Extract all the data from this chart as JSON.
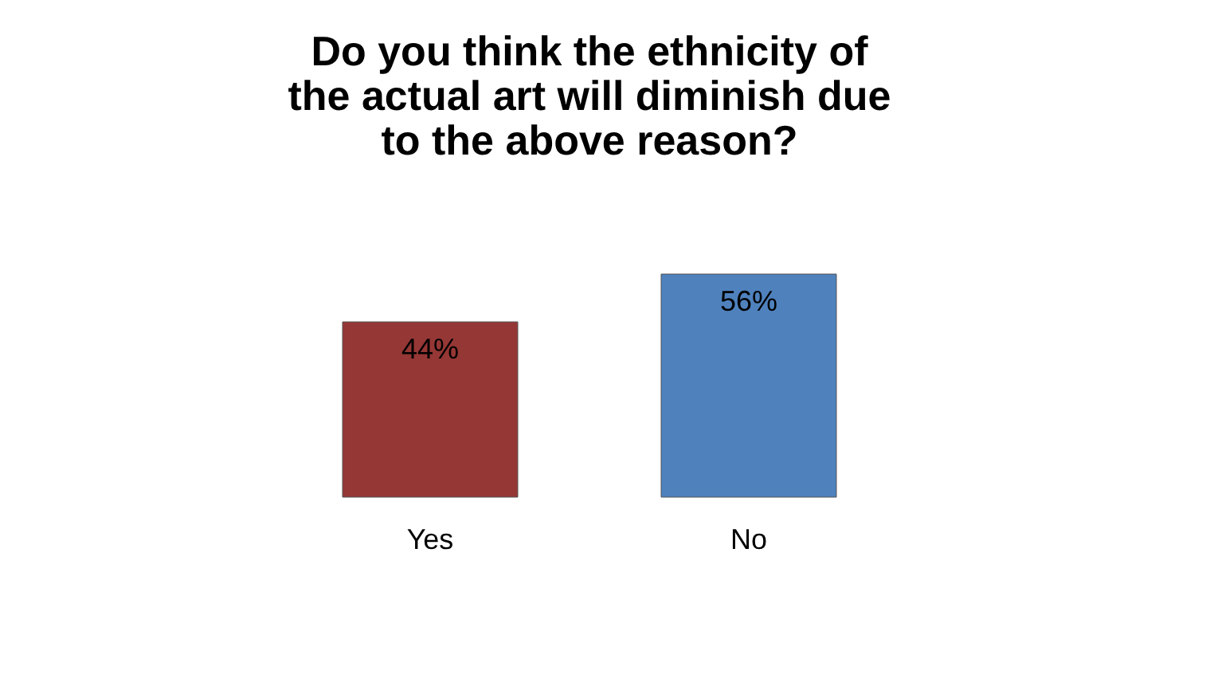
{
  "chart_data": {
    "type": "bar",
    "title": "Do you think the ethnicity of the actual art will diminish due to the above reason?",
    "categories": [
      "Yes",
      "No"
    ],
    "values": [
      44,
      56
    ],
    "colors": [
      "#953735",
      "#4f81bd"
    ],
    "value_labels": [
      "44%",
      "56%"
    ]
  }
}
